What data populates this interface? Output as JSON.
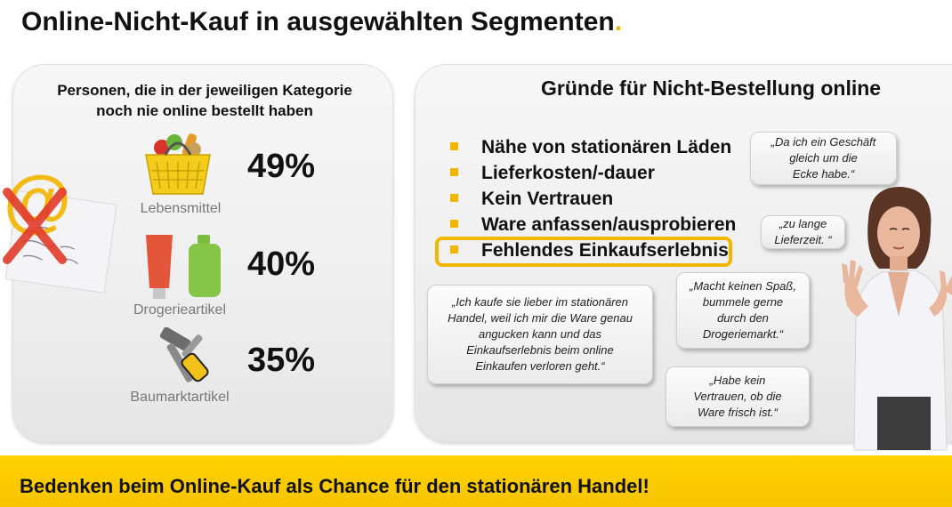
{
  "slide": {
    "title": "Online-Nicht-Kauf in ausgewählten Segmenten",
    "title_dot": ".",
    "accent_color": "#f2b600",
    "bottom_bar_color": "#ffd200",
    "bottom_text": "Bedenken beim Online-Kauf als Chance für den stationären Handel!"
  },
  "left_panel": {
    "heading_line1": "Personen, die in der jeweiligen Kategorie",
    "heading_line2": "noch nie online bestellt haben",
    "categories": [
      {
        "label": "Lebensmittel",
        "value": "49%",
        "icon": "shopping-basket-icon"
      },
      {
        "label": "Drogerieartikel",
        "value": "40%",
        "icon": "toiletries-icon"
      },
      {
        "label": "Baumarktartikel",
        "value": "35%",
        "icon": "tools-icon"
      }
    ],
    "decor_icon": "crossed-at-sign-icon"
  },
  "right_panel": {
    "heading": "Gründe für Nicht-Bestellung online",
    "reasons": [
      "Nähe von stationären Läden",
      "Lieferkosten/-dauer",
      "Kein Vertrauen",
      "Ware anfassen/ausprobieren",
      "Fehlendes Einkaufserlebnis"
    ],
    "highlighted_reason_index": 4,
    "quotes": {
      "q1_l1": "„Da ich ein Geschäft",
      "q1_l2": "gleich um die",
      "q1_l3": "Ecke habe.“",
      "q2_l1": "„zu lange",
      "q2_l2": "Lieferzeit. “",
      "q3_l1": "„Ich kaufe sie lieber im stationären",
      "q3_l2": "Handel, weil ich mir die Ware genau",
      "q3_l3": "angucken kann und das",
      "q3_l4": "Einkaufserlebnis beim online",
      "q3_l5": "Einkaufen verloren geht.“",
      "q4_l1": "„Macht keinen Spaß,",
      "q4_l2": "bummele gerne",
      "q4_l3": "durch den",
      "q4_l4": "Drogeriemarkt.“",
      "q5_l1": "„Habe kein",
      "q5_l2": "Vertrauen, ob die",
      "q5_l3": "Ware frisch ist.“"
    },
    "person_icon": "woman-rejecting-gesture-icon"
  }
}
